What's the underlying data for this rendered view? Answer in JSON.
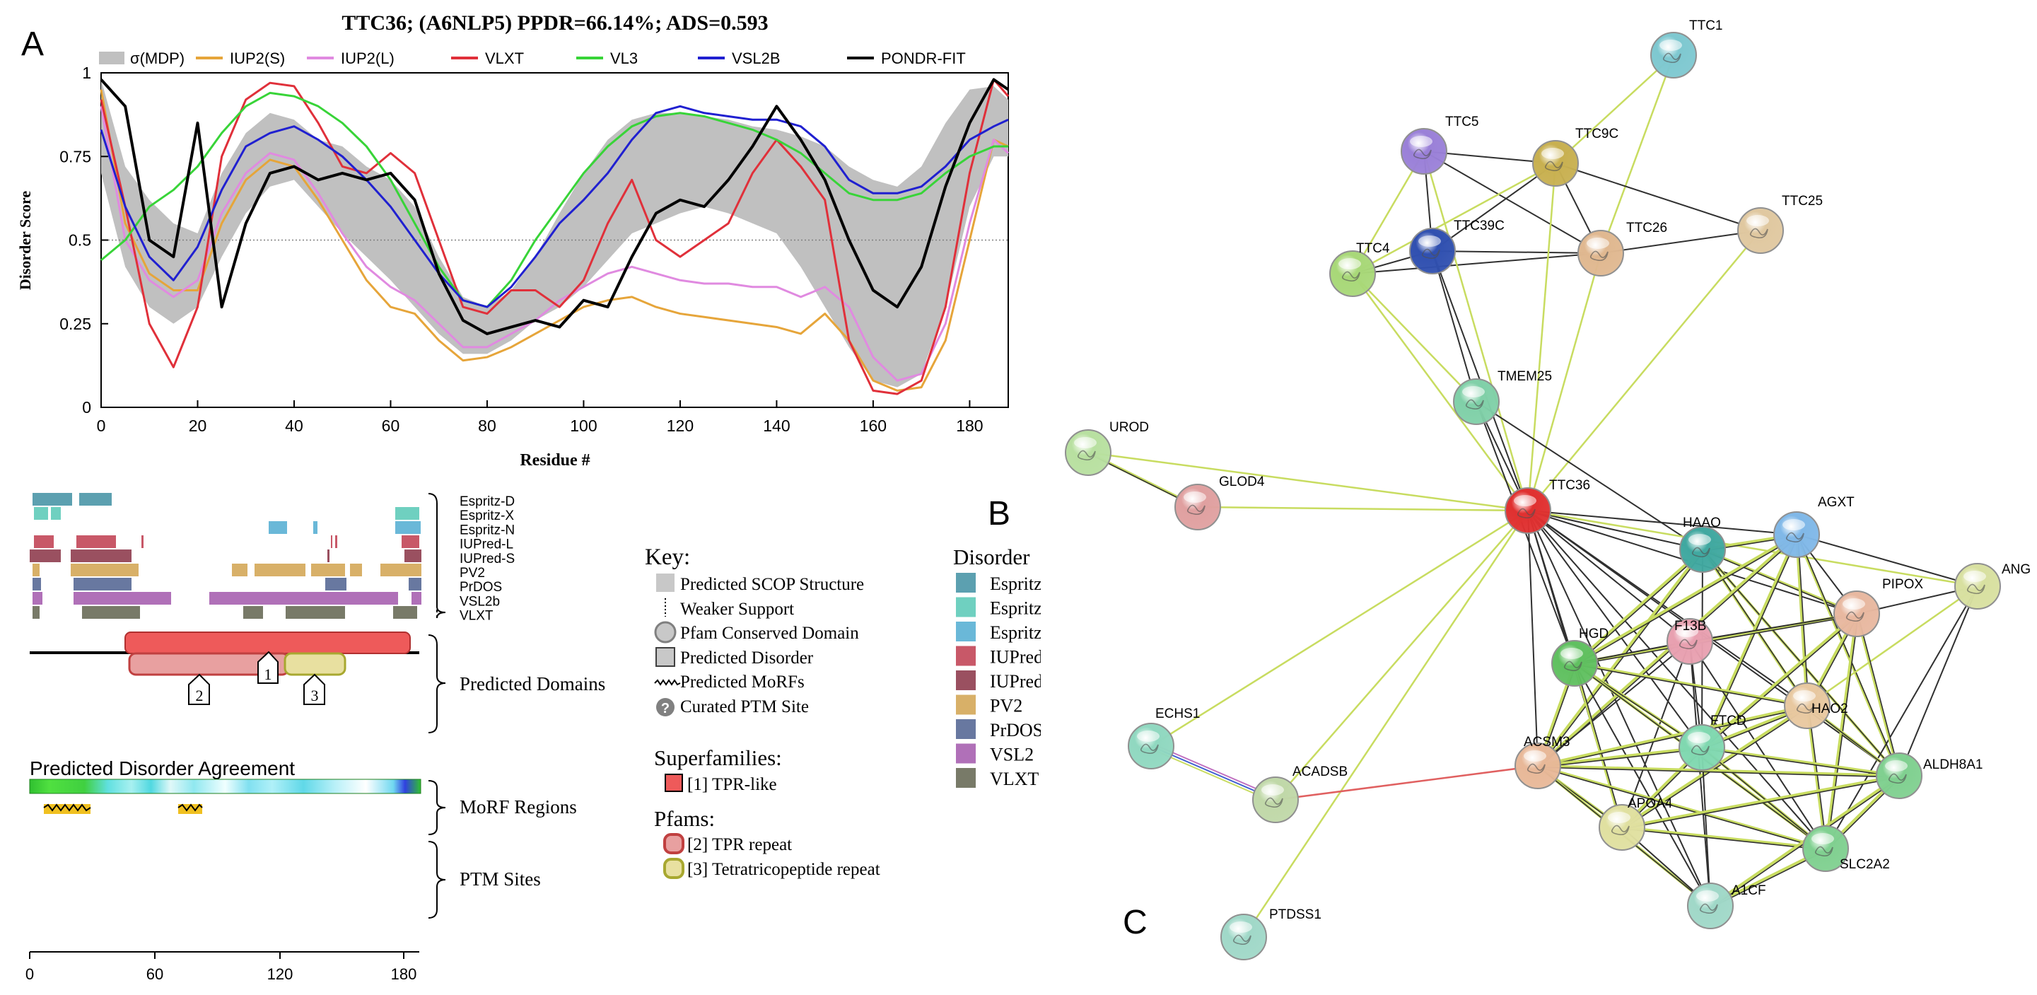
{
  "panel_labels": {
    "a": "A",
    "b": "B",
    "c": "C"
  },
  "chart_data": {
    "type": "line",
    "title": "TTC36; (A6NLP5) PPDR=66.14%; ADS=0.593",
    "xlabel": "Residue #",
    "ylabel": "Disorder Score",
    "xlim": [
      0,
      188
    ],
    "ylim": [
      0,
      1
    ],
    "threshold": 0.5,
    "xticks": [
      "0",
      "20",
      "40",
      "60",
      "80",
      "100",
      "120",
      "140",
      "160",
      "180"
    ],
    "yticks": [
      "0",
      "0.25",
      "0.5",
      "0.75",
      "1"
    ],
    "band": {
      "name": "σ(MDP)",
      "color": "#c0c0c0",
      "x": [
        0,
        5,
        10,
        15,
        20,
        25,
        30,
        35,
        40,
        45,
        50,
        55,
        60,
        65,
        70,
        75,
        80,
        85,
        90,
        95,
        100,
        105,
        110,
        115,
        120,
        125,
        130,
        135,
        140,
        145,
        150,
        155,
        160,
        165,
        170,
        175,
        180,
        185,
        188
      ],
      "upper": [
        0.98,
        0.72,
        0.62,
        0.55,
        0.52,
        0.7,
        0.82,
        0.88,
        0.86,
        0.8,
        0.78,
        0.72,
        0.68,
        0.6,
        0.45,
        0.33,
        0.3,
        0.35,
        0.45,
        0.58,
        0.7,
        0.8,
        0.86,
        0.88,
        0.88,
        0.87,
        0.86,
        0.84,
        0.83,
        0.81,
        0.78,
        0.72,
        0.68,
        0.66,
        0.72,
        0.85,
        0.95,
        0.96,
        0.92
      ],
      "lower": [
        0.7,
        0.42,
        0.3,
        0.25,
        0.3,
        0.45,
        0.58,
        0.66,
        0.68,
        0.6,
        0.52,
        0.45,
        0.38,
        0.3,
        0.22,
        0.16,
        0.16,
        0.2,
        0.26,
        0.3,
        0.36,
        0.44,
        0.52,
        0.55,
        0.58,
        0.6,
        0.58,
        0.55,
        0.52,
        0.42,
        0.3,
        0.18,
        0.08,
        0.06,
        0.1,
        0.3,
        0.6,
        0.75,
        0.75
      ]
    },
    "x": [
      0,
      5,
      10,
      15,
      20,
      25,
      30,
      35,
      40,
      45,
      50,
      55,
      60,
      65,
      70,
      75,
      80,
      85,
      90,
      95,
      100,
      105,
      110,
      115,
      120,
      125,
      130,
      135,
      140,
      145,
      150,
      155,
      160,
      165,
      170,
      175,
      180,
      185,
      188
    ],
    "series": [
      {
        "name": "IUP2(S)",
        "color": "#e6a53a",
        "values": [
          0.95,
          0.55,
          0.4,
          0.35,
          0.35,
          0.55,
          0.68,
          0.74,
          0.72,
          0.62,
          0.5,
          0.38,
          0.3,
          0.28,
          0.2,
          0.14,
          0.15,
          0.18,
          0.22,
          0.26,
          0.3,
          0.32,
          0.33,
          0.3,
          0.28,
          0.27,
          0.26,
          0.25,
          0.24,
          0.22,
          0.28,
          0.2,
          0.08,
          0.05,
          0.06,
          0.2,
          0.5,
          0.8,
          0.78
        ]
      },
      {
        "name": "IUP2(L)",
        "color": "#e08ae0",
        "values": [
          0.9,
          0.5,
          0.38,
          0.33,
          0.38,
          0.58,
          0.7,
          0.76,
          0.74,
          0.64,
          0.52,
          0.42,
          0.36,
          0.32,
          0.25,
          0.18,
          0.18,
          0.22,
          0.26,
          0.32,
          0.36,
          0.4,
          0.42,
          0.4,
          0.38,
          0.37,
          0.37,
          0.36,
          0.36,
          0.33,
          0.36,
          0.3,
          0.15,
          0.08,
          0.1,
          0.25,
          0.55,
          0.8,
          0.76
        ]
      },
      {
        "name": "VLXT",
        "color": "#e0303a",
        "values": [
          0.92,
          0.6,
          0.25,
          0.12,
          0.3,
          0.75,
          0.92,
          0.97,
          0.96,
          0.85,
          0.72,
          0.7,
          0.76,
          0.7,
          0.5,
          0.3,
          0.28,
          0.35,
          0.35,
          0.3,
          0.38,
          0.55,
          0.68,
          0.5,
          0.45,
          0.5,
          0.55,
          0.7,
          0.8,
          0.72,
          0.62,
          0.2,
          0.05,
          0.04,
          0.08,
          0.3,
          0.7,
          0.98,
          0.93
        ]
      },
      {
        "name": "VL3",
        "color": "#38d438",
        "values": [
          0.44,
          0.5,
          0.6,
          0.65,
          0.72,
          0.82,
          0.9,
          0.94,
          0.93,
          0.9,
          0.85,
          0.78,
          0.68,
          0.55,
          0.42,
          0.32,
          0.3,
          0.38,
          0.5,
          0.6,
          0.7,
          0.78,
          0.84,
          0.87,
          0.88,
          0.87,
          0.85,
          0.83,
          0.8,
          0.76,
          0.7,
          0.64,
          0.62,
          0.62,
          0.64,
          0.7,
          0.75,
          0.78,
          0.78
        ]
      },
      {
        "name": "VSL2B",
        "color": "#2020d0",
        "values": [
          0.83,
          0.6,
          0.45,
          0.38,
          0.48,
          0.65,
          0.78,
          0.82,
          0.84,
          0.8,
          0.75,
          0.68,
          0.6,
          0.5,
          0.4,
          0.32,
          0.3,
          0.36,
          0.45,
          0.55,
          0.62,
          0.7,
          0.8,
          0.88,
          0.9,
          0.88,
          0.87,
          0.86,
          0.86,
          0.84,
          0.78,
          0.68,
          0.64,
          0.64,
          0.66,
          0.72,
          0.8,
          0.84,
          0.86
        ]
      },
      {
        "name": "PONDR-FIT",
        "color": "#000000",
        "values": [
          0.98,
          0.9,
          0.5,
          0.45,
          0.85,
          0.3,
          0.55,
          0.7,
          0.72,
          0.68,
          0.7,
          0.68,
          0.7,
          0.62,
          0.4,
          0.26,
          0.22,
          0.24,
          0.26,
          0.24,
          0.32,
          0.3,
          0.45,
          0.58,
          0.62,
          0.6,
          0.68,
          0.78,
          0.9,
          0.8,
          0.68,
          0.5,
          0.35,
          0.3,
          0.42,
          0.66,
          0.85,
          0.98,
          0.95
        ]
      }
    ]
  },
  "track_panel": {
    "tracks": [
      {
        "name": "Espritz-D",
        "color": "#5ca0b0"
      },
      {
        "name": "Espritz-X",
        "color": "#6fd0c0"
      },
      {
        "name": "Espritz-N",
        "color": "#6ab8d8"
      },
      {
        "name": "IUPred-L",
        "color": "#c85868"
      },
      {
        "name": "IUPred-S",
        "color": "#9a5060"
      },
      {
        "name": "PV2",
        "color": "#d8b068"
      },
      {
        "name": "PrDOS",
        "color": "#6878a0"
      },
      {
        "name": "VSL2b",
        "color": "#b070b8"
      },
      {
        "name": "VLXT",
        "color": "#787a68"
      }
    ],
    "predicted_domains_label": "Predicted Domains",
    "domain_markers": [
      "1",
      "2",
      "3"
    ],
    "agreement_title": "Predicted Disorder Agreement",
    "morf_label": "MoRF Regions",
    "ptm_label": "PTM Sites",
    "axis_ticks": [
      "0",
      "60",
      "120",
      "180"
    ]
  },
  "key": {
    "title": "Key:",
    "items": [
      "Predicted SCOP Structure",
      "Weaker Support",
      "Pfam Conserved Domain",
      "Predicted Disorder",
      "Predicted MoRFs",
      "Curated PTM Site"
    ],
    "ptm_glyph": "?",
    "superfamilies_title": "Superfamilies:",
    "superfamilies": [
      "[1] TPR-like"
    ],
    "pfams_title": "Pfams:",
    "pfams": [
      "[2] TPR repeat",
      "[3] Tetratricopeptide repeat"
    ]
  },
  "disorder_legend": {
    "title": "Disorder",
    "items": [
      {
        "label": "Espritz",
        "color": "#5ca0b0"
      },
      {
        "label": "Espritz",
        "color": "#6fd0c0"
      },
      {
        "label": "Espritz",
        "color": "#6ab8d8"
      },
      {
        "label": "IUPred",
        "color": "#c85868"
      },
      {
        "label": "IUPred",
        "color": "#9a5060"
      },
      {
        "label": "PV2",
        "color": "#d8b068"
      },
      {
        "label": "PrDOS",
        "color": "#6878a0"
      },
      {
        "label": "VSL2",
        "color": "#b070b8"
      },
      {
        "label": "VLXT",
        "color": "#787a68"
      }
    ]
  },
  "network": {
    "nodes": [
      {
        "id": "TTC1",
        "color": "#7ec8d0"
      },
      {
        "id": "TTC5",
        "color": "#9a80d8"
      },
      {
        "id": "TTC9C",
        "color": "#c8b050"
      },
      {
        "id": "TTC25",
        "color": "#e0c8a0"
      },
      {
        "id": "TTC4",
        "color": "#a8d878"
      },
      {
        "id": "TTC39C",
        "color": "#3050b0"
      },
      {
        "id": "TTC26",
        "color": "#e0b890"
      },
      {
        "id": "TMEM25",
        "color": "#80d0a8"
      },
      {
        "id": "UROD",
        "color": "#b8e0a0"
      },
      {
        "id": "GLOD4",
        "color": "#e0a0a0"
      },
      {
        "id": "TTC36",
        "color": "#e03030"
      },
      {
        "id": "HAAO",
        "color": "#40a8a0"
      },
      {
        "id": "AGXT",
        "color": "#80b8e8"
      },
      {
        "id": "ANG",
        "color": "#d8e0a0"
      },
      {
        "id": "PIPOX",
        "color": "#e8b8a0"
      },
      {
        "id": "F13B",
        "color": "#e8a0b0"
      },
      {
        "id": "HGD",
        "color": "#60c060"
      },
      {
        "id": "HAO2",
        "color": "#e8c8a0"
      },
      {
        "id": "FTCD",
        "color": "#80d8b0"
      },
      {
        "id": "ACSM3",
        "color": "#e8b898"
      },
      {
        "id": "ECHS1",
        "color": "#90d8c0"
      },
      {
        "id": "ACADSB",
        "color": "#c0d8a8"
      },
      {
        "id": "ALDH8A1",
        "color": "#80d090"
      },
      {
        "id": "APOA4",
        "color": "#e0e0a0"
      },
      {
        "id": "SLC2A2",
        "color": "#80d090"
      },
      {
        "id": "A1CF",
        "color": "#a0d8c8"
      },
      {
        "id": "PTDSS1",
        "color": "#a0d8c8"
      }
    ]
  }
}
